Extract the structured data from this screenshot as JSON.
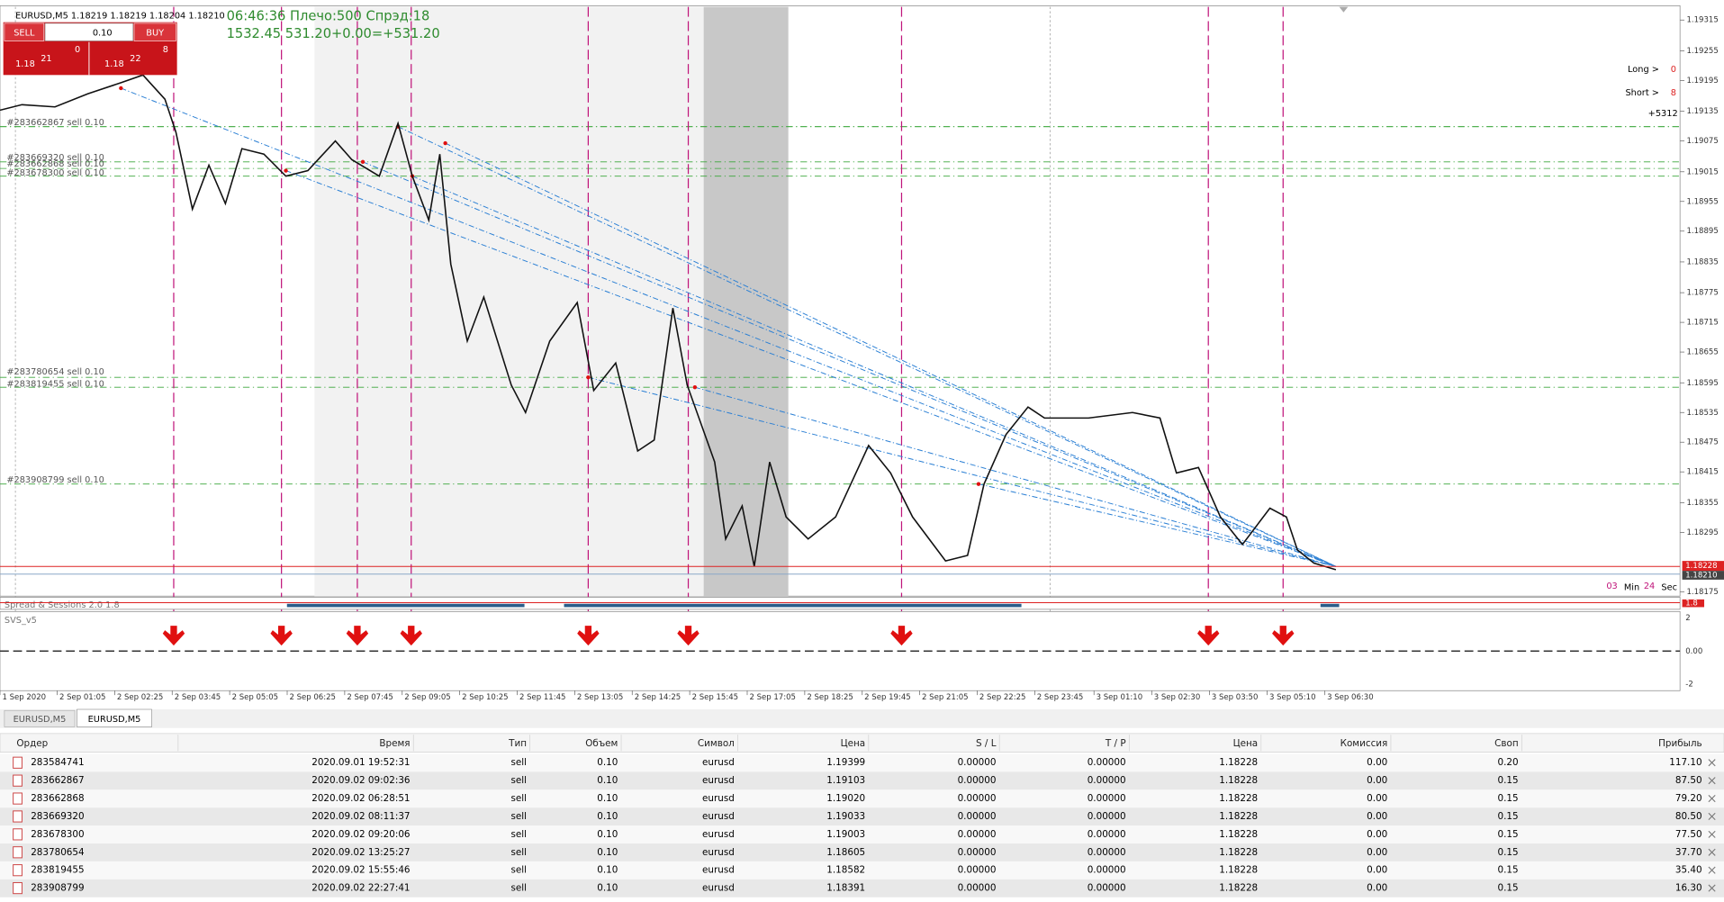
{
  "header": {
    "symbol_info": "EURUSD,M5  1.18219 1.18219 1.18204 1.18210",
    "info_line1": "06:46:36 Плечо:500 Спрэд:18",
    "info_line2": "1532.45   531.20+0.00=+531.20"
  },
  "trade_panel": {
    "sell": "SELL",
    "buy": "BUY",
    "lot": "0.10",
    "sell_prefix": "1.18",
    "sell_big": "21",
    "sell_sup": "0",
    "buy_prefix": "1.18",
    "buy_big": "22",
    "buy_sup": "8"
  },
  "stats": {
    "long_label": "Long >",
    "long_value": "0",
    "short_label": "Short >",
    "short_value": "8",
    "total": "+5312"
  },
  "timer": {
    "min": "03",
    "min_label": "Min",
    "sec": "24",
    "sec_label": "Sec"
  },
  "price_axis": [
    "1.19315",
    "1.19255",
    "1.19195",
    "1.19135",
    "1.19075",
    "1.19015",
    "1.18955",
    "1.18895",
    "1.18835",
    "1.18775",
    "1.18715",
    "1.18655",
    "1.18595",
    "1.18535",
    "1.18475",
    "1.18415",
    "1.18355",
    "1.18295",
    "1.18175"
  ],
  "current_prices": [
    "1.18228",
    "1.18210"
  ],
  "order_labels": [
    "#283662867 sell 0.10",
    "#283669320 sell 0.10",
    "#283662868 sell 0.10",
    "#283678300 sell 0.10",
    "#283780654 sell 0.10",
    "#283819455 sell 0.10",
    "#283908799 sell 0.10"
  ],
  "time_axis": [
    "1 Sep 2020",
    "2 Sep 01:05",
    "2 Sep 02:25",
    "2 Sep 03:45",
    "2 Sep 05:05",
    "2 Sep 06:25",
    "2 Sep 07:45",
    "2 Sep 09:05",
    "2 Sep 10:25",
    "2 Sep 11:45",
    "2 Sep 13:05",
    "2 Sep 14:25",
    "2 Sep 15:45",
    "2 Sep 17:05",
    "2 Sep 18:25",
    "2 Sep 19:45",
    "2 Sep 21:05",
    "2 Sep 22:25",
    "2 Sep 23:45",
    "3 Sep 01:10",
    "3 Sep 02:30",
    "3 Sep 03:50",
    "3 Sep 05:10",
    "3 Sep 06:30"
  ],
  "indicators": {
    "spread": "Spread & Sessions 2.0 1.8",
    "spread_value": "1.8",
    "svs": "SVS_v5",
    "svs_axis": [
      "2",
      "0.00",
      "-2"
    ]
  },
  "tabs": [
    "EURUSD,M5",
    "EURUSD,M5"
  ],
  "table": {
    "columns": [
      "Ордер",
      "Время",
      "Тип",
      "Объем",
      "Символ",
      "Цена",
      "S / L",
      "T / P",
      "Цена",
      "Комиссия",
      "Своп",
      "Прибыль"
    ],
    "rows": [
      [
        "283584741",
        "2020.09.01 19:52:31",
        "sell",
        "0.10",
        "eurusd",
        "1.19399",
        "0.00000",
        "0.00000",
        "1.18228",
        "0.00",
        "0.20",
        "117.10"
      ],
      [
        "283662867",
        "2020.09.02 09:02:36",
        "sell",
        "0.10",
        "eurusd",
        "1.19103",
        "0.00000",
        "0.00000",
        "1.18228",
        "0.00",
        "0.15",
        "87.50"
      ],
      [
        "283662868",
        "2020.09.02 06:28:51",
        "sell",
        "0.10",
        "eurusd",
        "1.19020",
        "0.00000",
        "0.00000",
        "1.18228",
        "0.00",
        "0.15",
        "79.20"
      ],
      [
        "283669320",
        "2020.09.02 08:11:37",
        "sell",
        "0.10",
        "eurusd",
        "1.19033",
        "0.00000",
        "0.00000",
        "1.18228",
        "0.00",
        "0.15",
        "80.50"
      ],
      [
        "283678300",
        "2020.09.02 09:20:06",
        "sell",
        "0.10",
        "eurusd",
        "1.19003",
        "0.00000",
        "0.00000",
        "1.18228",
        "0.00",
        "0.15",
        "77.50"
      ],
      [
        "283780654",
        "2020.09.02 13:25:27",
        "sell",
        "0.10",
        "eurusd",
        "1.18605",
        "0.00000",
        "0.00000",
        "1.18228",
        "0.00",
        "0.15",
        "37.70"
      ],
      [
        "283819455",
        "2020.09.02 15:55:46",
        "sell",
        "0.10",
        "eurusd",
        "1.18582",
        "0.00000",
        "0.00000",
        "1.18228",
        "0.00",
        "0.15",
        "35.40"
      ],
      [
        "283908799",
        "2020.09.02 22:27:41",
        "sell",
        "0.10",
        "eurusd",
        "1.18391",
        "0.00000",
        "0.00000",
        "1.18228",
        "0.00",
        "0.15",
        "16.30"
      ]
    ]
  }
}
